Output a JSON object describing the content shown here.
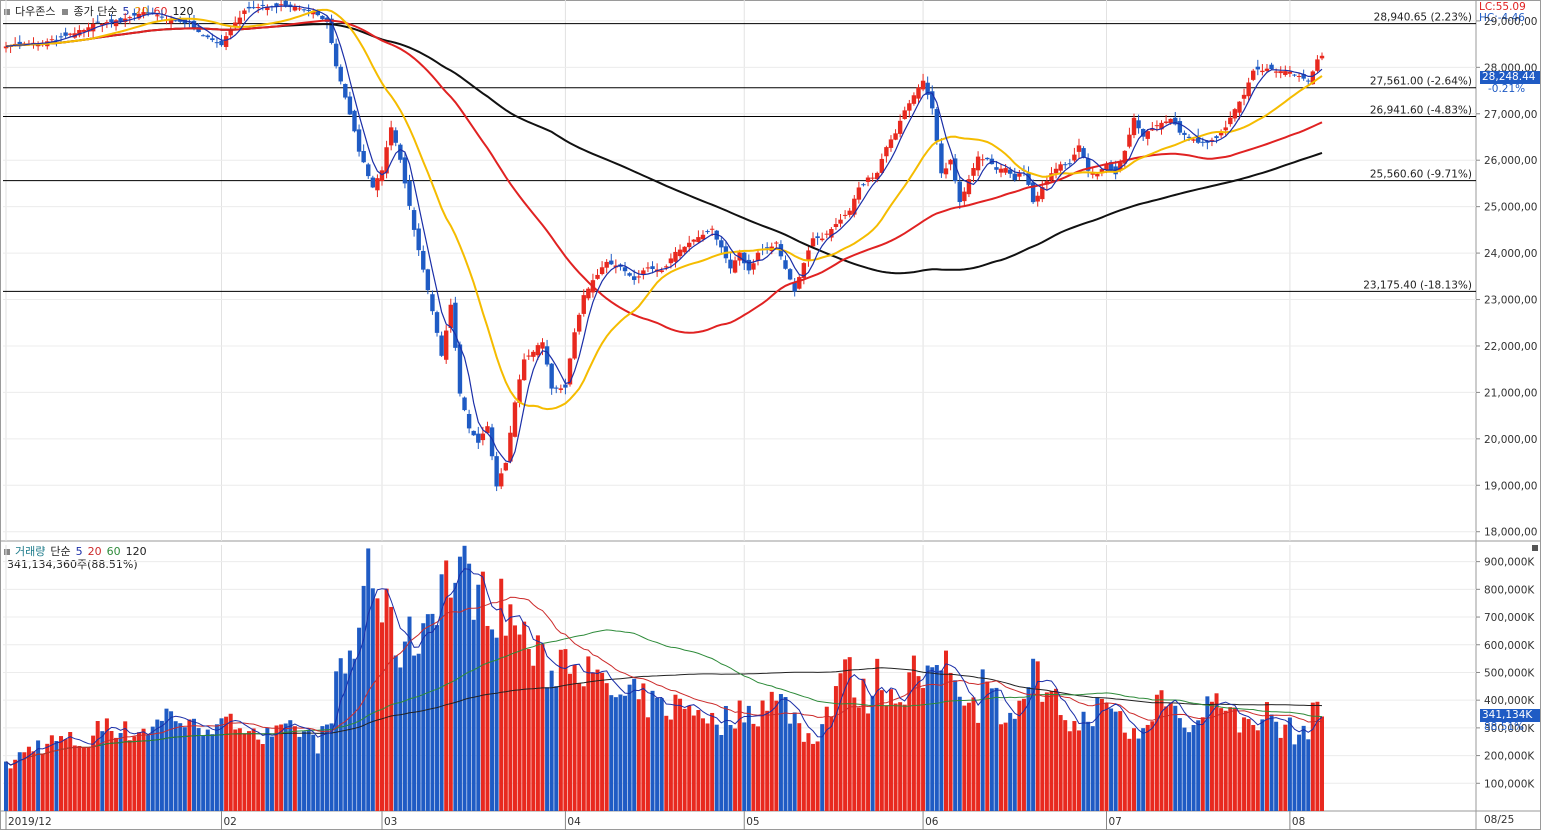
{
  "window": {
    "title": ""
  },
  "legend_price": {
    "title": "다우존스",
    "label": "종가 단순",
    "ma5": "5",
    "ma20": "20",
    "ma60": "60",
    "ma120": "120"
  },
  "legend_volume": {
    "title": "거래량",
    "label": "단순",
    "ma5": "5",
    "ma20": "20",
    "ma60": "60",
    "ma120": "120",
    "value": "341,134,360주(88.51%)"
  },
  "top_right": {
    "lc": "LC:55.09",
    "hc": "HC:-4.46"
  },
  "current_price": {
    "box": "28,248.44",
    "change": "-0.21%"
  },
  "current_volume": {
    "box": "341,134K",
    "pct": "88.51%"
  },
  "date_axis_end": "08/25",
  "colors": {
    "up": "#e8291f",
    "down": "#1f5bc4",
    "ma5": "#1b2fa8",
    "ma20": "#f5bc00",
    "ma60": "#e02222",
    "ma120": "#111111",
    "vol_ma20": "#cc2b2b",
    "vol_ma60": "#2e8b3a",
    "vol_ma120": "#222222"
  },
  "chart_data": [
    {
      "type": "candlestick",
      "title": "다우존스",
      "y_ticks": [
        "29,000,00",
        "28,000,00",
        "27,000,00",
        "26,000,00",
        "25,000,00",
        "24,000,00",
        "23,000,00",
        "22,000,00",
        "21,000,00",
        "20,000,00",
        "19,000,00",
        "18,000,00"
      ],
      "y_tick_values": [
        29000,
        28000,
        27000,
        26000,
        25000,
        24000,
        23000,
        22000,
        21000,
        20000,
        19000,
        18000
      ],
      "ylim": [
        17800,
        29450
      ],
      "x_labels": [
        "2019/12",
        "02",
        "03",
        "04",
        "05",
        "06",
        "07",
        "08"
      ],
      "x_label_index": [
        0,
        47,
        82,
        122,
        161,
        200,
        240,
        280
      ],
      "horizontal_lines": [
        {
          "value": 28940.65,
          "label": "28,940.65 (2.23%)"
        },
        {
          "value": 27561.0,
          "label": "27,561.00 (-2.64%)"
        },
        {
          "value": 26941.6,
          "label": "26,941.60 (-4.83%)"
        },
        {
          "value": 25560.6,
          "label": "25,560.60 (-9.71%)"
        },
        {
          "value": 23175.4,
          "label": "23,175.40 (-18.13%)"
        }
      ],
      "close_anchors": [
        [
          0,
          28480
        ],
        [
          8,
          28520
        ],
        [
          14,
          28700
        ],
        [
          20,
          28950
        ],
        [
          25,
          29000
        ],
        [
          30,
          29200
        ],
        [
          36,
          29000
        ],
        [
          40,
          28950
        ],
        [
          44,
          28620
        ],
        [
          47,
          28500
        ],
        [
          52,
          29250
        ],
        [
          56,
          29300
        ],
        [
          60,
          29350
        ],
        [
          66,
          29250
        ],
        [
          70,
          29000
        ],
        [
          72,
          28000
        ],
        [
          75,
          27000
        ],
        [
          77,
          26200
        ],
        [
          80,
          25400
        ],
        [
          82,
          25800
        ],
        [
          84,
          26700
        ],
        [
          86,
          26000
        ],
        [
          89,
          24500
        ],
        [
          92,
          23200
        ],
        [
          95,
          21800
        ],
        [
          97,
          22900
        ],
        [
          99,
          21000
        ],
        [
          101,
          20200
        ],
        [
          103,
          19900
        ],
        [
          105,
          20300
        ],
        [
          107,
          19000
        ],
        [
          109,
          19500
        ],
        [
          111,
          20800
        ],
        [
          113,
          21700
        ],
        [
          115,
          21900
        ],
        [
          117,
          22100
        ],
        [
          119,
          21100
        ],
        [
          122,
          21100
        ],
        [
          124,
          22300
        ],
        [
          126,
          23100
        ],
        [
          128,
          23400
        ],
        [
          131,
          23800
        ],
        [
          134,
          23700
        ],
        [
          137,
          23400
        ],
        [
          140,
          23700
        ],
        [
          143,
          23600
        ],
        [
          146,
          24000
        ],
        [
          149,
          24200
        ],
        [
          152,
          24400
        ],
        [
          154,
          24500
        ],
        [
          156,
          24100
        ],
        [
          158,
          23700
        ],
        [
          160,
          24000
        ],
        [
          162,
          23600
        ],
        [
          164,
          24000
        ],
        [
          166,
          24100
        ],
        [
          168,
          24200
        ],
        [
          170,
          23650
        ],
        [
          172,
          23200
        ],
        [
          174,
          23800
        ],
        [
          176,
          24300
        ],
        [
          178,
          24300
        ],
        [
          180,
          24500
        ],
        [
          182,
          24700
        ],
        [
          184,
          24900
        ],
        [
          186,
          25400
        ],
        [
          188,
          25600
        ],
        [
          190,
          25700
        ],
        [
          192,
          26300
        ],
        [
          194,
          26600
        ],
        [
          196,
          27100
        ],
        [
          198,
          27400
        ],
        [
          200,
          27700
        ],
        [
          202,
          27100
        ],
        [
          204,
          25700
        ],
        [
          206,
          26000
        ],
        [
          208,
          25100
        ],
        [
          210,
          25600
        ],
        [
          212,
          26100
        ],
        [
          214,
          26000
        ],
        [
          216,
          25800
        ],
        [
          218,
          25800
        ],
        [
          220,
          25600
        ],
        [
          222,
          25800
        ],
        [
          224,
          25100
        ],
        [
          226,
          25400
        ],
        [
          228,
          25700
        ],
        [
          230,
          25900
        ],
        [
          232,
          25900
        ],
        [
          234,
          26300
        ],
        [
          236,
          25800
        ],
        [
          238,
          25700
        ],
        [
          240,
          25900
        ],
        [
          242,
          25700
        ],
        [
          244,
          26200
        ],
        [
          246,
          26900
        ],
        [
          248,
          26500
        ],
        [
          250,
          26700
        ],
        [
          252,
          26800
        ],
        [
          254,
          26900
        ],
        [
          256,
          26600
        ],
        [
          258,
          26500
        ],
        [
          260,
          26400
        ],
        [
          262,
          26400
        ],
        [
          264,
          26500
        ],
        [
          266,
          26700
        ],
        [
          268,
          27100
        ],
        [
          270,
          27400
        ],
        [
          272,
          27900
        ],
        [
          274,
          27950
        ],
        [
          276,
          27950
        ],
        [
          278,
          27900
        ],
        [
          280,
          27900
        ],
        [
          282,
          27800
        ],
        [
          284,
          27700
        ],
        [
          285,
          27900
        ],
        [
          286,
          28150
        ],
        [
          287,
          28248.44
        ]
      ],
      "series": [
        {
          "name": "5",
          "type": "ma"
        },
        {
          "name": "20",
          "type": "ma"
        },
        {
          "name": "60",
          "type": "ma"
        },
        {
          "name": "120",
          "type": "ma"
        }
      ]
    },
    {
      "type": "bar",
      "title": "거래량",
      "unit": "K",
      "y_ticks": [
        "900,000K",
        "800,000K",
        "700,000K",
        "600,000K",
        "500,000K",
        "400,000K",
        "300,000K",
        "200,000K",
        "100,000K"
      ],
      "y_tick_values": [
        900000,
        800000,
        700000,
        600000,
        500000,
        400000,
        300000,
        200000,
        100000
      ],
      "ylim": [
        0,
        960000
      ],
      "volume_anchors": [
        [
          0,
          160000
        ],
        [
          6,
          240000
        ],
        [
          12,
          260000
        ],
        [
          18,
          250000
        ],
        [
          22,
          340000
        ],
        [
          26,
          290000
        ],
        [
          30,
          300000
        ],
        [
          34,
          330000
        ],
        [
          36,
          380000
        ],
        [
          40,
          300000
        ],
        [
          44,
          330000
        ],
        [
          47,
          300000
        ],
        [
          52,
          340000
        ],
        [
          56,
          270000
        ],
        [
          60,
          280000
        ],
        [
          64,
          300000
        ],
        [
          68,
          250000
        ],
        [
          70,
          300000
        ],
        [
          72,
          460000
        ],
        [
          76,
          580000
        ],
        [
          79,
          930000
        ],
        [
          82,
          740000
        ],
        [
          86,
          600000
        ],
        [
          90,
          650000
        ],
        [
          93,
          760000
        ],
        [
          95,
          860000
        ],
        [
          98,
          860000
        ],
        [
          101,
          860000
        ],
        [
          104,
          780000
        ],
        [
          107,
          760000
        ],
        [
          110,
          720000
        ],
        [
          113,
          640000
        ],
        [
          116,
          560000
        ],
        [
          119,
          500000
        ],
        [
          122,
          600000
        ],
        [
          125,
          560000
        ],
        [
          128,
          470000
        ],
        [
          131,
          460000
        ],
        [
          134,
          400000
        ],
        [
          137,
          420000
        ],
        [
          140,
          400000
        ],
        [
          143,
          380000
        ],
        [
          146,
          390000
        ],
        [
          149,
          380000
        ],
        [
          152,
          380000
        ],
        [
          155,
          300000
        ],
        [
          158,
          360000
        ],
        [
          161,
          360000
        ],
        [
          164,
          370000
        ],
        [
          166,
          420000
        ],
        [
          168,
          400000
        ],
        [
          170,
          390000
        ],
        [
          172,
          350000
        ],
        [
          174,
          280000
        ],
        [
          176,
          270000
        ],
        [
          178,
          330000
        ],
        [
          180,
          400000
        ],
        [
          182,
          520000
        ],
        [
          184,
          500000
        ],
        [
          186,
          430000
        ],
        [
          188,
          420000
        ],
        [
          190,
          500000
        ],
        [
          192,
          460000
        ],
        [
          194,
          420000
        ],
        [
          196,
          460000
        ],
        [
          198,
          520000
        ],
        [
          200,
          470000
        ],
        [
          202,
          460000
        ],
        [
          204,
          580000
        ],
        [
          206,
          520000
        ],
        [
          208,
          480000
        ],
        [
          210,
          420000
        ],
        [
          212,
          380000
        ],
        [
          214,
          560000
        ],
        [
          216,
          400000
        ],
        [
          218,
          360000
        ],
        [
          220,
          380000
        ],
        [
          222,
          370000
        ],
        [
          224,
          600000
        ],
        [
          226,
          380000
        ],
        [
          228,
          400000
        ],
        [
          230,
          380000
        ],
        [
          232,
          330000
        ],
        [
          234,
          300000
        ],
        [
          236,
          360000
        ],
        [
          238,
          380000
        ],
        [
          240,
          360000
        ],
        [
          242,
          380000
        ],
        [
          244,
          300000
        ],
        [
          246,
          280000
        ],
        [
          248,
          300000
        ],
        [
          250,
          320000
        ],
        [
          252,
          500000
        ],
        [
          254,
          380000
        ],
        [
          256,
          360000
        ],
        [
          258,
          340000
        ],
        [
          260,
          320000
        ],
        [
          262,
          380000
        ],
        [
          264,
          480000
        ],
        [
          266,
          360000
        ],
        [
          268,
          340000
        ],
        [
          270,
          320000
        ],
        [
          272,
          340000
        ],
        [
          274,
          360000
        ],
        [
          276,
          350000
        ],
        [
          278,
          300000
        ],
        [
          280,
          300000
        ],
        [
          282,
          280000
        ],
        [
          284,
          310000
        ],
        [
          286,
          380000
        ],
        [
          287,
          341134
        ]
      ]
    }
  ]
}
